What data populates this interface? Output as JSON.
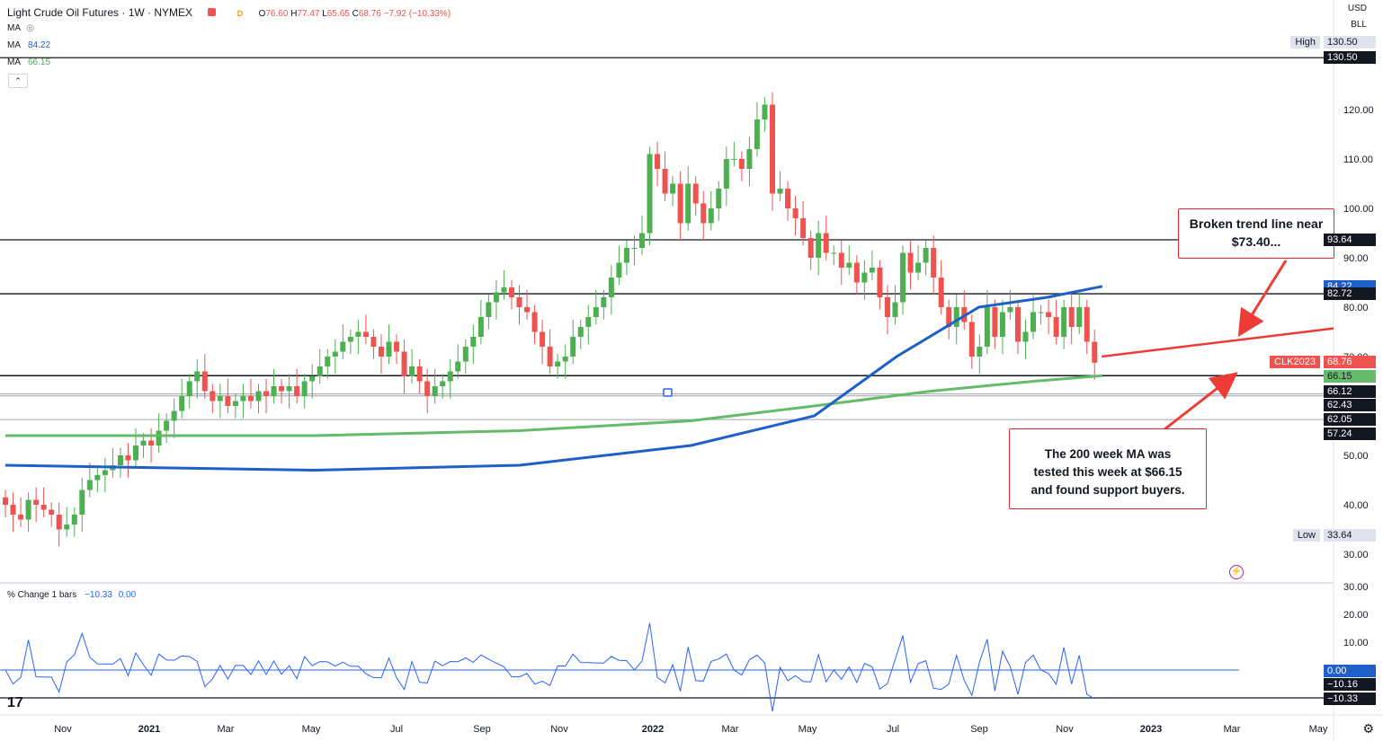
{
  "header": {
    "symbol_title": "Light Crude Oil Futures · 1W · NYMEX",
    "flag_marker": "D",
    "ohlc": {
      "o_label": "O",
      "o": "76.60",
      "h_label": "H",
      "h": "77.47",
      "l_label": "L",
      "l": "65.65",
      "c_label": "C",
      "c": "68.76",
      "change": "−7.92 (−10.33%)"
    }
  },
  "indicators": [
    {
      "label": "MA",
      "value": "",
      "icon": "eye-off-icon"
    },
    {
      "label": "MA",
      "value": "84.22",
      "color": "#1e60c8"
    },
    {
      "label": "MA",
      "value": "66.15",
      "color": "#5cb85c"
    }
  ],
  "oscillator": {
    "label": "% Change 1 bars",
    "value1": "−10.33",
    "value2": "0.00"
  },
  "axis_top": {
    "currency": "USD",
    "unit": "BLL"
  },
  "callouts": {
    "top_right": [
      "Broken trend line near",
      "$73.40..."
    ],
    "bottom_right": [
      "The 200 week MA was",
      "tested this week at $66.15",
      "and found support buyers."
    ]
  },
  "colors": {
    "up": "#4caf50",
    "down": "#ef5350",
    "ma_blue": "#1e60c8",
    "ma_green": "#66bb6a",
    "trend_red": "#ef3b36",
    "osc_blue": "#2962ff"
  },
  "chart_data": {
    "type": "candlestick",
    "timeframe": "1W",
    "ylim": [
      25,
      130.5
    ],
    "y_ticks": [
      30,
      40,
      50,
      60,
      70,
      80,
      90,
      100,
      110,
      120
    ],
    "x_labels": [
      "Nov",
      "2021",
      "Mar",
      "May",
      "Jul",
      "Sep",
      "Nov",
      "2022",
      "Mar",
      "May",
      "Jul",
      "Sep",
      "Nov",
      "2023",
      "Mar",
      "May"
    ],
    "horizontal_levels": [
      130.5,
      93.64,
      82.72,
      66.15,
      66.12
    ],
    "extra_levels": [
      62.43,
      62.05,
      57.24
    ],
    "price_labels": [
      {
        "text": "High",
        "value": "130.50",
        "style": "gray"
      },
      {
        "text": "",
        "value": "130.50",
        "style": "black"
      },
      {
        "text": "",
        "value": "93.64",
        "style": "black"
      },
      {
        "text": "",
        "value": "84.22",
        "style": "blue"
      },
      {
        "text": "",
        "value": "82.72",
        "style": "black"
      },
      {
        "text": "CLK2023",
        "value": "68.76",
        "style": "red"
      },
      {
        "text": "",
        "value": "66.15",
        "style": "green"
      },
      {
        "text": "",
        "value": "66.12",
        "style": "black"
      },
      {
        "text": "",
        "value": "62.43",
        "style": "black"
      },
      {
        "text": "",
        "value": "62.05",
        "style": "black"
      },
      {
        "text": "",
        "value": "57.24",
        "style": "black"
      },
      {
        "text": "Low",
        "value": "33.64",
        "style": "gray"
      }
    ],
    "candles_close": [
      40,
      38,
      37,
      41,
      40,
      39,
      38,
      35,
      36,
      38,
      43,
      45,
      46,
      47,
      48,
      50,
      49,
      52,
      53,
      52,
      55,
      57,
      59,
      62,
      65,
      67,
      63,
      61,
      62,
      60,
      61,
      62,
      61,
      63,
      62,
      64,
      63,
      64,
      62,
      65,
      66,
      68,
      70,
      71,
      73,
      74,
      75,
      74,
      72,
      70,
      73,
      71,
      66,
      68,
      65,
      62,
      64,
      65,
      67,
      69,
      72,
      74,
      78,
      81,
      83,
      84,
      82,
      80,
      79,
      75,
      72,
      68,
      69,
      70,
      74,
      76,
      78,
      80,
      82,
      86,
      89,
      92,
      92,
      95,
      111,
      108,
      103,
      105,
      97,
      105,
      101,
      97,
      100,
      104,
      110,
      110,
      108,
      112,
      118,
      121,
      103,
      104,
      100,
      98,
      94,
      90,
      95,
      91,
      91,
      88,
      89,
      85,
      87,
      88,
      82,
      78,
      81,
      91,
      87,
      89,
      92,
      86,
      80,
      76,
      80,
      77,
      70,
      72,
      80,
      74,
      79,
      80,
      73,
      75,
      79,
      79,
      78,
      74,
      80,
      76,
      80,
      73,
      68.76
    ],
    "ma_blue_200": [
      {
        "x": 0,
        "y": 48
      },
      {
        "x": 45,
        "y": 47
      },
      {
        "x": 75,
        "y": 48
      },
      {
        "x": 100,
        "y": 52
      },
      {
        "x": 118,
        "y": 58
      },
      {
        "x": 130,
        "y": 70
      },
      {
        "x": 142,
        "y": 80
      },
      {
        "x": 152,
        "y": 82
      },
      {
        "x": 160,
        "y": 84.22
      }
    ],
    "ma_green_200": [
      {
        "x": 0,
        "y": 54
      },
      {
        "x": 45,
        "y": 54
      },
      {
        "x": 75,
        "y": 55
      },
      {
        "x": 100,
        "y": 57
      },
      {
        "x": 118,
        "y": 60
      },
      {
        "x": 135,
        "y": 63
      },
      {
        "x": 150,
        "y": 65
      },
      {
        "x": 160,
        "y": 66.15
      }
    ],
    "trend_line": [
      {
        "x": 126,
        "y": 70
      },
      {
        "x": 160,
        "y": 75
      }
    ],
    "osc_ylim": [
      -12,
      30
    ],
    "osc_y_ticks": [
      30,
      20,
      10,
      0
    ],
    "osc_labels": [
      {
        "value": "0.00",
        "style": "blue"
      },
      {
        "value": "−10.16",
        "style": "black"
      },
      {
        "value": "−10.33",
        "style": "black"
      }
    ]
  }
}
